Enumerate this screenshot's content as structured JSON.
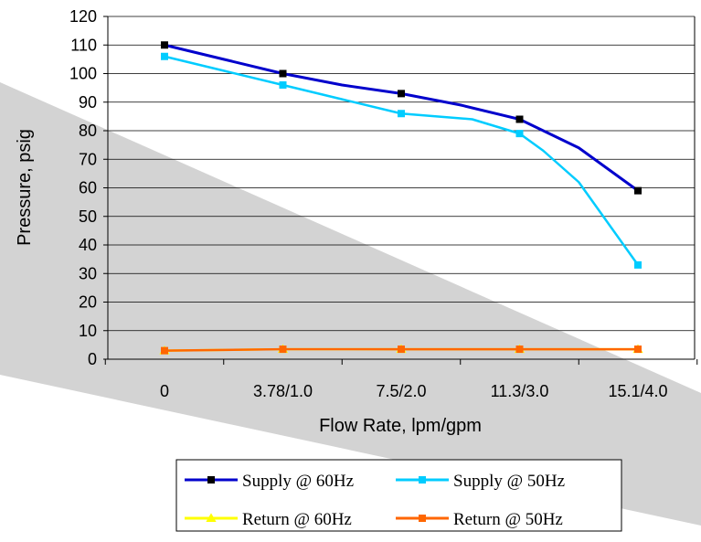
{
  "chart_data": {
    "type": "line",
    "xlabel": "Flow Rate, lpm/gpm",
    "ylabel": "Pressure, psig",
    "categories": [
      "0",
      "3.78/1.0",
      "7.5/2.0",
      "11.3/3.0",
      "15.1/4.0"
    ],
    "ylim": [
      0,
      120
    ],
    "yticks": [
      0,
      10,
      20,
      30,
      40,
      50,
      60,
      70,
      80,
      90,
      100,
      110,
      120
    ],
    "grid": true,
    "legend_position": "bottom",
    "series": [
      {
        "name": "Supply @ 60Hz",
        "color": "#0000cc",
        "marker": "square",
        "marker_color": "#000000",
        "x": [
          0,
          0.5,
          1,
          1.5,
          2,
          2.5,
          3,
          3.5,
          4
        ],
        "y": [
          110,
          105,
          100,
          96,
          93,
          89,
          84,
          74,
          59
        ],
        "marker_x": [
          0,
          1,
          2,
          3,
          4
        ]
      },
      {
        "name": "Supply @ 50Hz",
        "color": "#00ccff",
        "marker": "square",
        "marker_color": "#00ccff",
        "x": [
          0,
          0.5,
          1,
          1.5,
          2,
          2.3,
          2.6,
          3,
          3.2,
          3.5,
          4
        ],
        "y": [
          106,
          101,
          96,
          91,
          86,
          85,
          84,
          79,
          73,
          62,
          33
        ],
        "marker_x": [
          0,
          1,
          2,
          3,
          4
        ]
      },
      {
        "name": "Return @ 60Hz",
        "color": "#ffff00",
        "marker": "triangle",
        "marker_color": "#ffff00",
        "x": [
          0,
          1,
          2,
          3,
          4
        ],
        "y": [
          3,
          3.5,
          3.5,
          3.5,
          3.5
        ],
        "marker_x": [
          0,
          1,
          2,
          3,
          4
        ]
      },
      {
        "name": "Return @ 50Hz",
        "color": "#ff6600",
        "marker": "square",
        "marker_color": "#ff6600",
        "x": [
          0,
          1,
          2,
          3,
          4
        ],
        "y": [
          3,
          3.5,
          3.5,
          3.5,
          3.5
        ],
        "marker_x": [
          0,
          1,
          2,
          3,
          4
        ]
      }
    ]
  }
}
